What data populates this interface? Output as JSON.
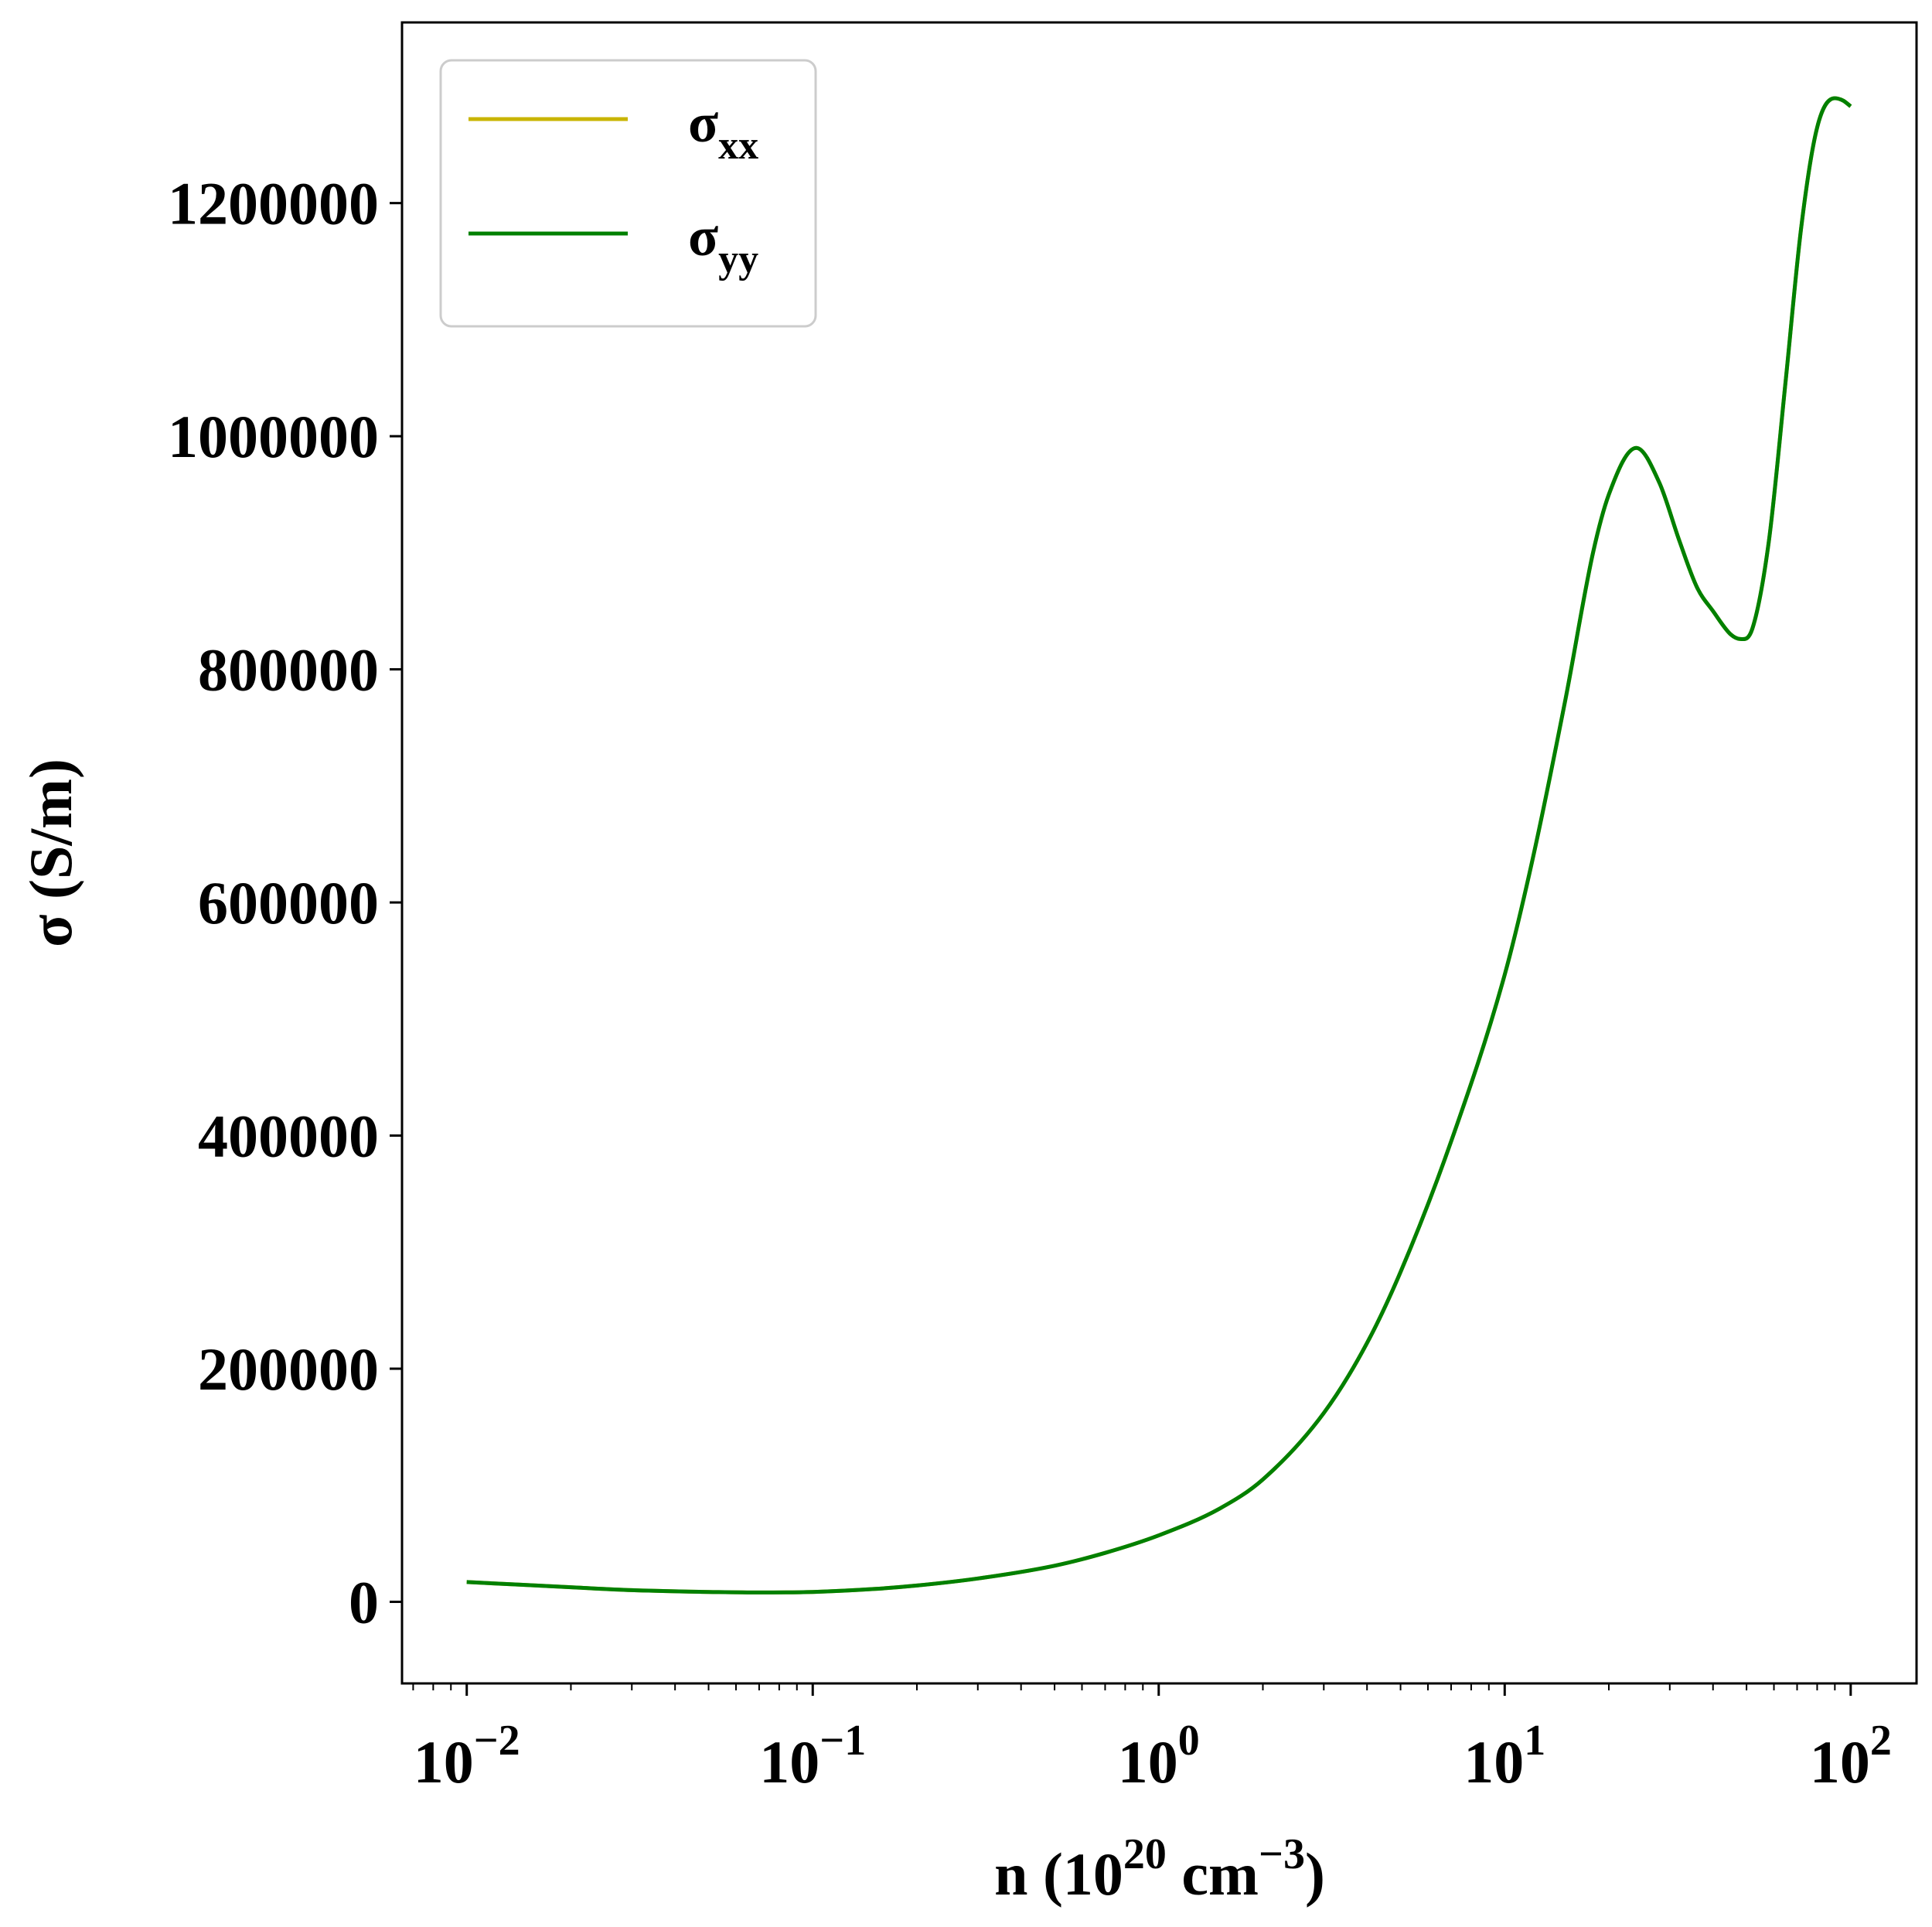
{
  "chart_data": {
    "type": "line",
    "xlabel": {
      "base": "n (10",
      "exp1": "20",
      "mid": " cm",
      "exp2": "−3",
      "end": ")"
    },
    "ylabel": "σ (S/m)",
    "xscale": "log",
    "xlim": [
      0.0065,
      155
    ],
    "ylim": [
      -70000,
      1355000
    ],
    "x_ticks": [
      {
        "value": 0.01,
        "base": "10",
        "exp": "−2"
      },
      {
        "value": 0.1,
        "base": "10",
        "exp": "−1"
      },
      {
        "value": 1,
        "base": "10",
        "exp": "0"
      },
      {
        "value": 10,
        "base": "10",
        "exp": "1"
      },
      {
        "value": 100,
        "base": "10",
        "exp": "2"
      }
    ],
    "y_ticks": [
      {
        "value": 0,
        "label": "0"
      },
      {
        "value": 200000,
        "label": "200000"
      },
      {
        "value": 400000,
        "label": "400000"
      },
      {
        "value": 600000,
        "label": "600000"
      },
      {
        "value": 800000,
        "label": "800000"
      },
      {
        "value": 1000000,
        "label": "1000000"
      },
      {
        "value": 1200000,
        "label": "1200000"
      }
    ],
    "legend": {
      "placement": "top-left"
    },
    "grid": false,
    "x": [
      0.01,
      0.02,
      0.03,
      0.05,
      0.07,
      0.1,
      0.15,
      0.2,
      0.3,
      0.5,
      0.7,
      1,
      1.5,
      2,
      3,
      4,
      5,
      7,
      10,
      12,
      15,
      18,
      20,
      24,
      28,
      32,
      36,
      40,
      45,
      48,
      52,
      58,
      65,
      72,
      80,
      90,
      95,
      100
    ],
    "series": [
      {
        "name": "σ",
        "sub": "xx",
        "color": "#c8b400",
        "values": [
          17000,
          12500,
          10000,
          8500,
          8000,
          8500,
          11000,
          14000,
          20000,
          31000,
          42000,
          57000,
          80000,
          105000,
          162000,
          222000,
          283000,
          395000,
          538000,
          635000,
          775000,
          900000,
          950000,
          990000,
          960000,
          910000,
          870000,
          850000,
          830000,
          826000,
          835000,
          910000,
          1050000,
          1180000,
          1265000,
          1290000,
          1288000,
          1283000
        ]
      },
      {
        "name": "σ",
        "sub": "yy",
        "color": "#008000",
        "values": [
          17000,
          12500,
          10000,
          8500,
          8000,
          8500,
          11000,
          14000,
          20000,
          31000,
          42000,
          57000,
          80000,
          105000,
          162000,
          222000,
          283000,
          395000,
          538000,
          635000,
          775000,
          900000,
          950000,
          990000,
          960000,
          910000,
          870000,
          850000,
          830000,
          826000,
          835000,
          910000,
          1050000,
          1180000,
          1265000,
          1290000,
          1288000,
          1283000
        ]
      }
    ]
  }
}
